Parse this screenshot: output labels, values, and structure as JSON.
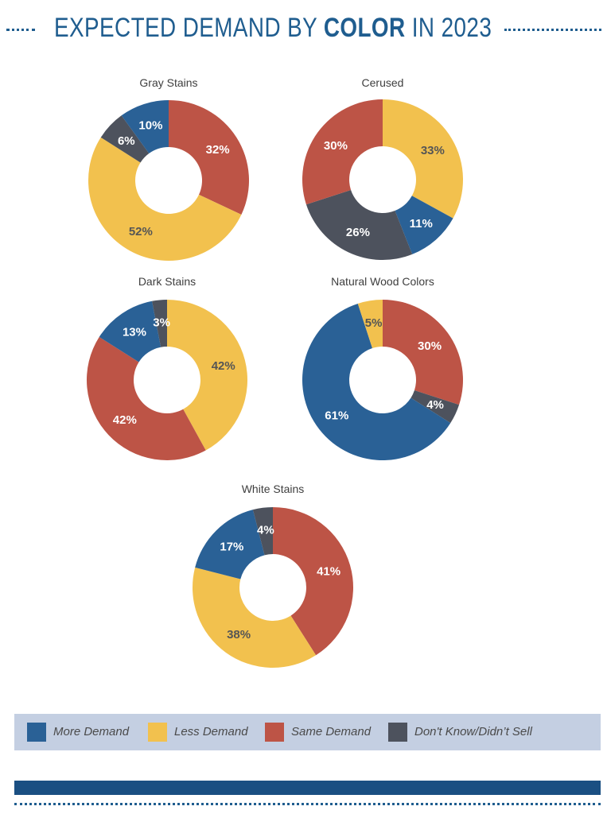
{
  "header": {
    "title_part1": "EXPECTED DEMAND BY",
    "title_bold": "COLOR",
    "title_part2": "IN 2023"
  },
  "colors": {
    "more": "#2a6196",
    "less": "#f2c14e",
    "same": "#bd5446",
    "dont_know": "#4d525d"
  },
  "legend": [
    {
      "key": "more",
      "label": "More Demand"
    },
    {
      "key": "less",
      "label": "Less Demand"
    },
    {
      "key": "same",
      "label": "Same Demand"
    },
    {
      "key": "dont_know",
      "label": "Don't Know/Didn’t Sell"
    }
  ],
  "chart_data": [
    {
      "type": "pie",
      "donut": true,
      "title": "Gray Stains",
      "slices": [
        {
          "key": "same",
          "value": 32,
          "label": "32%"
        },
        {
          "key": "less",
          "value": 52,
          "label": "52%"
        },
        {
          "key": "dont_know",
          "value": 6,
          "label": "6%"
        },
        {
          "key": "more",
          "value": 10,
          "label": "10%"
        }
      ]
    },
    {
      "type": "pie",
      "donut": true,
      "title": "Cerused",
      "slices": [
        {
          "key": "less",
          "value": 33,
          "label": "33%"
        },
        {
          "key": "more",
          "value": 11,
          "label": "11%"
        },
        {
          "key": "dont_know",
          "value": 26,
          "label": "26%"
        },
        {
          "key": "same",
          "value": 30,
          "label": "30%"
        }
      ]
    },
    {
      "type": "pie",
      "donut": true,
      "title": "Dark Stains",
      "slices": [
        {
          "key": "less",
          "value": 42,
          "label": "42%"
        },
        {
          "key": "same",
          "value": 42,
          "label": "42%"
        },
        {
          "key": "more",
          "value": 13,
          "label": "13%"
        },
        {
          "key": "dont_know",
          "value": 3,
          "label": "3%"
        }
      ]
    },
    {
      "type": "pie",
      "donut": true,
      "title": "Natural Wood Colors",
      "slices": [
        {
          "key": "same",
          "value": 30,
          "label": "30%"
        },
        {
          "key": "dont_know",
          "value": 4,
          "label": "4%"
        },
        {
          "key": "more",
          "value": 61,
          "label": "61%"
        },
        {
          "key": "less",
          "value": 5,
          "label": "5%"
        }
      ]
    },
    {
      "type": "pie",
      "donut": true,
      "title": "White Stains",
      "slices": [
        {
          "key": "same",
          "value": 41,
          "label": "41%"
        },
        {
          "key": "less",
          "value": 38,
          "label": "38%"
        },
        {
          "key": "more",
          "value": 17,
          "label": "17%"
        },
        {
          "key": "dont_know",
          "value": 4,
          "label": "4%"
        }
      ]
    }
  ]
}
